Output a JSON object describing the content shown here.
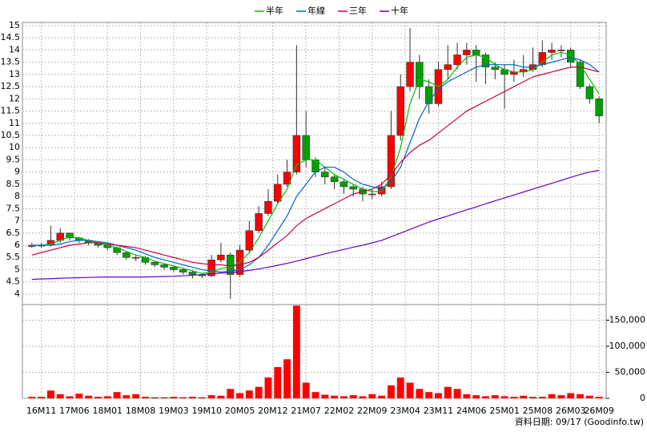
{
  "chart_data": {
    "type": "candlestick",
    "legend_position": "top",
    "source": "資料日期: 09/17 (Goodinfo.tw)",
    "x": [
      -2,
      0,
      2,
      4,
      6,
      8,
      10,
      12,
      14,
      16,
      18,
      20,
      22,
      24,
      26,
      28,
      30,
      32,
      34,
      36,
      38,
      40,
      42,
      44,
      46,
      48,
      50,
      52,
      54,
      56,
      58,
      60,
      62,
      64,
      66,
      68,
      70,
      72,
      74,
      76,
      78,
      80,
      82,
      84,
      86,
      88,
      90,
      92,
      94,
      96,
      98,
      100,
      102,
      104,
      106,
      108,
      110,
      112,
      114,
      116,
      118
    ],
    "xlim": [
      -4,
      119.5
    ],
    "xticks": [
      {
        "value": 0,
        "label": "16M11"
      },
      {
        "value": 7,
        "label": "17M06"
      },
      {
        "value": 14,
        "label": "18M01"
      },
      {
        "value": 21,
        "label": "18M08"
      },
      {
        "value": 28,
        "label": "19M03"
      },
      {
        "value": 35,
        "label": "19M10"
      },
      {
        "value": 42,
        "label": "20M05"
      },
      {
        "value": 49,
        "label": "20M12"
      },
      {
        "value": 56,
        "label": "21M07"
      },
      {
        "value": 63,
        "label": "22M02"
      },
      {
        "value": 70,
        "label": "22M09"
      },
      {
        "value": 77,
        "label": "23M04"
      },
      {
        "value": 84,
        "label": "23M11"
      },
      {
        "value": 91,
        "label": "24M06"
      },
      {
        "value": 98,
        "label": "25M01"
      },
      {
        "value": 105,
        "label": "25M08"
      },
      {
        "value": 112,
        "label": "26M03"
      },
      {
        "value": 118,
        "label": "26M09"
      }
    ],
    "ylim": [
      3.57,
      15.13
    ],
    "yticks": [
      4,
      4.5,
      5,
      5.5,
      6,
      6.5,
      7,
      7.5,
      8,
      8.5,
      9,
      9.5,
      10,
      10.5,
      11,
      11.5,
      12,
      12.5,
      13,
      13.5,
      14,
      14.5,
      15
    ],
    "y2lim": [
      0,
      180000
    ],
    "y2ticks": [
      0,
      {
        "value": 50000,
        "label": "50,000"
      },
      {
        "value": 100000,
        "label": "100,000"
      },
      {
        "value": 150000,
        "label": "150,000"
      }
    ],
    "grid": true,
    "up_color": "#ff0000",
    "down_color": "#00a000",
    "open": [
      5.95,
      6.0,
      6.0,
      6.2,
      6.5,
      6.3,
      6.2,
      6.1,
      6.0,
      5.9,
      5.7,
      5.5,
      5.5,
      5.3,
      5.2,
      5.1,
      5.0,
      4.9,
      4.8,
      4.75,
      5.4,
      5.6,
      4.8,
      5.8,
      6.6,
      7.3,
      7.8,
      8.5,
      9.0,
      10.5,
      9.5,
      9.0,
      8.8,
      8.6,
      8.4,
      8.3,
      8.1,
      8.1,
      8.4,
      10.5,
      12.5,
      13.5,
      12.5,
      11.8,
      13.2,
      13.4,
      13.8,
      14.0,
      13.8,
      13.3,
      13.2,
      13.0,
      13.1,
      13.2,
      13.4,
      13.9,
      14.0,
      14.0,
      13.5,
      12.5,
      12.0
    ],
    "high": [
      6.1,
      6.1,
      6.8,
      6.7,
      6.5,
      6.35,
      6.25,
      6.1,
      6.05,
      5.95,
      5.75,
      5.6,
      5.55,
      5.35,
      5.25,
      5.15,
      5.05,
      4.95,
      4.85,
      5.6,
      6.1,
      5.7,
      6.0,
      7.0,
      7.6,
      8.3,
      8.9,
      9.5,
      14.2,
      11.5,
      9.6,
      9.2,
      8.9,
      8.7,
      8.5,
      8.4,
      8.3,
      8.6,
      11.5,
      13.0,
      14.9,
      13.8,
      12.8,
      13.5,
      14.2,
      14.3,
      14.3,
      14.2,
      13.9,
      13.5,
      13.4,
      13.6,
      13.8,
      14.1,
      14.4,
      14.3,
      14.2,
      14.1,
      13.6,
      12.6,
      12.1
    ],
    "low": [
      5.9,
      5.9,
      5.95,
      6.1,
      6.2,
      6.1,
      6.0,
      5.9,
      5.8,
      5.6,
      5.4,
      5.35,
      5.2,
      5.1,
      5.0,
      4.9,
      4.8,
      4.65,
      4.65,
      4.7,
      5.3,
      3.8,
      4.7,
      5.7,
      6.5,
      7.2,
      7.7,
      8.4,
      8.9,
      9.2,
      8.8,
      8.5,
      8.3,
      8.1,
      8.0,
      7.8,
      7.9,
      8.0,
      8.3,
      10.3,
      12.3,
      12.0,
      11.4,
      11.7,
      12.8,
      13.2,
      13.4,
      12.7,
      12.6,
      12.8,
      11.6,
      12.7,
      12.9,
      13.1,
      13.3,
      13.6,
      13.7,
      13.3,
      12.4,
      11.8,
      11.0
    ],
    "close": [
      6.0,
      6.0,
      6.2,
      6.5,
      6.3,
      6.2,
      6.1,
      6.0,
      5.9,
      5.7,
      5.5,
      5.5,
      5.3,
      5.2,
      5.1,
      5.0,
      4.9,
      4.8,
      4.75,
      5.4,
      5.6,
      4.8,
      5.8,
      6.6,
      7.3,
      7.8,
      8.5,
      9.0,
      10.5,
      9.5,
      9.0,
      8.8,
      8.6,
      8.4,
      8.3,
      8.1,
      8.1,
      8.4,
      10.5,
      12.5,
      13.5,
      12.5,
      11.8,
      13.2,
      13.4,
      13.8,
      14.0,
      13.8,
      13.3,
      13.2,
      13.0,
      13.1,
      13.2,
      13.4,
      13.9,
      14.0,
      14.0,
      13.5,
      12.5,
      12.0,
      11.3
    ],
    "volume": {
      "color": "#ff0000",
      "axis": "y2",
      "values": [
        3000,
        3000,
        15000,
        8000,
        4000,
        9000,
        5000,
        3000,
        4000,
        12000,
        6000,
        8000,
        3000,
        2000,
        2000,
        3000,
        2000,
        3000,
        2000,
        6000,
        5000,
        18000,
        10000,
        15000,
        22000,
        40000,
        60000,
        75000,
        178000,
        30000,
        12000,
        7000,
        5000,
        4000,
        6000,
        4000,
        8000,
        5000,
        25000,
        40000,
        30000,
        18000,
        12000,
        10000,
        22000,
        18000,
        8000,
        6000,
        4000,
        6000,
        4000,
        3000,
        5000,
        3000,
        3000,
        8000,
        6000,
        10000,
        8000,
        5000,
        3000
      ]
    },
    "series": [
      {
        "name": "半年",
        "color": "#00c000",
        "values": [
          6.0,
          6.0,
          6.05,
          6.2,
          6.35,
          6.3,
          6.2,
          6.1,
          6.0,
          5.9,
          5.75,
          5.6,
          5.5,
          5.35,
          5.25,
          5.15,
          5.05,
          4.95,
          4.85,
          4.9,
          5.05,
          5.1,
          5.3,
          5.7,
          6.3,
          7.0,
          7.7,
          8.3,
          9.3,
          9.5,
          9.5,
          9.2,
          8.9,
          8.7,
          8.5,
          8.3,
          8.2,
          8.2,
          8.8,
          10.0,
          11.8,
          12.8,
          12.7,
          12.5,
          12.8,
          13.3,
          13.7,
          13.8,
          13.7,
          13.4,
          13.2,
          13.1,
          13.1,
          13.2,
          13.5,
          13.8,
          13.9,
          13.8,
          13.4,
          12.8,
          12.2
        ]
      },
      {
        "name": "年線",
        "color": "#0066cc",
        "values": [
          6.0,
          6.0,
          6.0,
          6.05,
          6.15,
          6.2,
          6.2,
          6.15,
          6.1,
          6.0,
          5.9,
          5.8,
          5.65,
          5.5,
          5.4,
          5.3,
          5.2,
          5.1,
          5.0,
          4.95,
          4.9,
          4.95,
          5.0,
          5.2,
          5.5,
          6.0,
          6.6,
          7.2,
          8.0,
          8.5,
          9.0,
          9.2,
          9.2,
          9.0,
          8.7,
          8.5,
          8.4,
          8.3,
          8.6,
          9.2,
          10.2,
          11.2,
          11.9,
          12.4,
          12.7,
          12.9,
          13.1,
          13.3,
          13.4,
          13.4,
          13.4,
          13.4,
          13.3,
          13.3,
          13.4,
          13.5,
          13.6,
          13.7,
          13.6,
          13.4,
          13.1
        ]
      },
      {
        "name": "三年",
        "color": "#cc0044",
        "values": [
          5.6,
          5.7,
          5.8,
          5.9,
          6.0,
          6.05,
          6.1,
          6.1,
          6.05,
          6.0,
          5.95,
          5.9,
          5.8,
          5.7,
          5.6,
          5.5,
          5.4,
          5.3,
          5.25,
          5.2,
          5.2,
          5.15,
          5.2,
          5.3,
          5.5,
          5.8,
          6.1,
          6.4,
          6.8,
          7.1,
          7.3,
          7.5,
          7.7,
          7.9,
          8.1,
          8.2,
          8.3,
          8.5,
          8.9,
          9.4,
          9.8,
          10.1,
          10.3,
          10.6,
          10.9,
          11.2,
          11.5,
          11.7,
          11.9,
          12.1,
          12.3,
          12.5,
          12.7,
          12.9,
          13.0,
          13.1,
          13.2,
          13.3,
          13.3,
          13.2,
          13.1
        ]
      },
      {
        "name": "十年",
        "color": "#6600cc",
        "values": [
          4.6,
          4.62,
          4.63,
          4.65,
          4.66,
          4.67,
          4.68,
          4.69,
          4.7,
          4.7,
          4.7,
          4.7,
          4.7,
          4.71,
          4.72,
          4.73,
          4.75,
          4.77,
          4.8,
          4.83,
          4.86,
          4.88,
          4.92,
          4.97,
          5.03,
          5.1,
          5.18,
          5.26,
          5.35,
          5.45,
          5.55,
          5.65,
          5.74,
          5.83,
          5.92,
          6.0,
          6.1,
          6.2,
          6.35,
          6.5,
          6.65,
          6.8,
          6.95,
          7.08,
          7.2,
          7.33,
          7.45,
          7.57,
          7.7,
          7.82,
          7.94,
          8.06,
          8.18,
          8.3,
          8.42,
          8.54,
          8.66,
          8.78,
          8.9,
          9.0,
          9.07
        ]
      }
    ]
  }
}
